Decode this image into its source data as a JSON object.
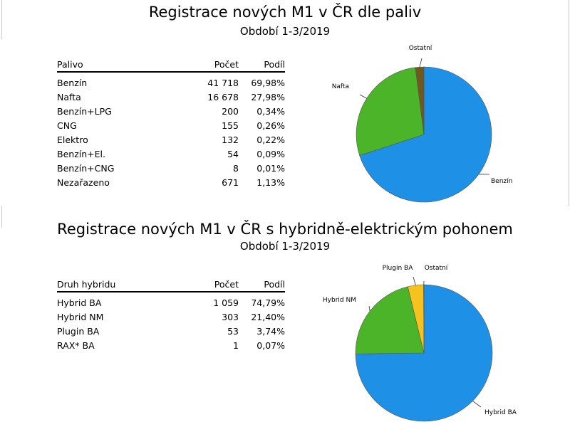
{
  "charts": [
    {
      "title": "Registrace nových M1 v ČR dle paliv",
      "subtitle": "Období 1-3/2019",
      "table": {
        "headers": [
          "Palivo",
          "Počet",
          "Podíl"
        ],
        "rows": [
          [
            "Benzín",
            "41 718",
            "69,98%"
          ],
          [
            "Nafta",
            "16 678",
            "27,98%"
          ],
          [
            "Benzín+LPG",
            "200",
            "0,34%"
          ],
          [
            "CNG",
            "155",
            "0,26%"
          ],
          [
            "Elektro",
            "132",
            "0,22%"
          ],
          [
            "Benzín+El.",
            "54",
            "0,09%"
          ],
          [
            "Benzín+CNG",
            "8",
            "0,01%"
          ],
          [
            "Nezařazeno",
            "671",
            "1,13%"
          ]
        ]
      }
    },
    {
      "title": "Registrace nových M1 v ČR s hybridně-elektrickým pohonem",
      "subtitle": "Období 1-3/2019",
      "table": {
        "headers": [
          "Druh hybridu",
          "Počet",
          "Podíl"
        ],
        "rows": [
          [
            "Hybrid BA",
            "1 059",
            "74,79%"
          ],
          [
            "Hybrid NM",
            "303",
            "21,40%"
          ],
          [
            "Plugin BA",
            "53",
            "3,74%"
          ],
          [
            "RAX* BA",
            "1",
            "0,07%"
          ]
        ]
      }
    }
  ],
  "chart_data": [
    {
      "type": "pie",
      "slices": [
        {
          "label": "Benzín",
          "value": 69.98,
          "color": "#1e90e6"
        },
        {
          "label": "Nafta",
          "value": 27.98,
          "color": "#4cb428"
        },
        {
          "label": "Ostatní",
          "value": 2.04,
          "color": "#6e5a1e"
        }
      ]
    },
    {
      "type": "pie",
      "slices": [
        {
          "label": "Hybrid BA",
          "value": 74.79,
          "color": "#1e90e6"
        },
        {
          "label": "Hybrid NM",
          "value": 21.4,
          "color": "#4cb428"
        },
        {
          "label": "Plugin BA",
          "value": 3.74,
          "color": "#f5c21e"
        },
        {
          "label": "Ostatní",
          "value": 0.07,
          "color": "#9e9e9e"
        }
      ]
    }
  ]
}
